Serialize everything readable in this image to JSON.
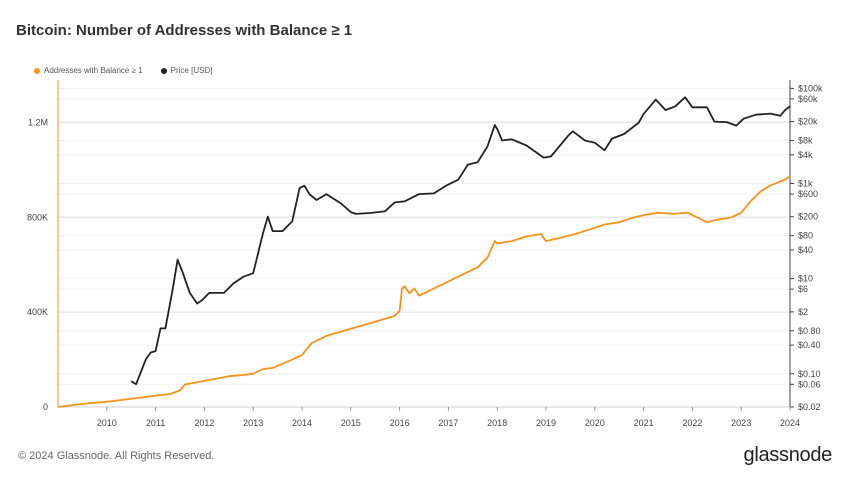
{
  "chart_data": {
    "type": "line",
    "title": "Bitcoin: Number of Addresses with Balance ≥ 1",
    "x_ticks": [
      "2010",
      "2011",
      "2012",
      "2013",
      "2014",
      "2015",
      "2016",
      "2017",
      "2018",
      "2019",
      "2020",
      "2021",
      "2022",
      "2023",
      "2024"
    ],
    "x_range": [
      2009.0,
      2024.0
    ],
    "left_axis": {
      "ticks": [
        {
          "v": 0,
          "label": "0"
        },
        {
          "v": 400000,
          "label": "400K"
        },
        {
          "v": 800000,
          "label": "800K"
        },
        {
          "v": 1200000,
          "label": "1.2M"
        }
      ],
      "ylim": [
        0,
        1380000
      ]
    },
    "right_axis": {
      "scale": "log",
      "ticks": [
        {
          "v": 100000,
          "label": "$100k"
        },
        {
          "v": 60000,
          "label": "$60k"
        },
        {
          "v": 20000,
          "label": "$20k"
        },
        {
          "v": 8000,
          "label": "$8k"
        },
        {
          "v": 4000,
          "label": "$4k"
        },
        {
          "v": 1000,
          "label": "$1k"
        },
        {
          "v": 600,
          "label": "$600"
        },
        {
          "v": 200,
          "label": "$200"
        },
        {
          "v": 80,
          "label": "$80"
        },
        {
          "v": 40,
          "label": "$40"
        },
        {
          "v": 10,
          "label": "$10"
        },
        {
          "v": 6,
          "label": "$6"
        },
        {
          "v": 2,
          "label": "$2"
        },
        {
          "v": 0.8,
          "label": "$0.80"
        },
        {
          "v": 0.4,
          "label": "$0.40"
        },
        {
          "v": 0.1,
          "label": "$0.10"
        },
        {
          "v": 0.06,
          "label": "$0.06"
        },
        {
          "v": 0.02,
          "label": "$0.02"
        }
      ],
      "ylim": [
        0.02,
        150000
      ]
    },
    "series": [
      {
        "name": "Addresses with Balance ≥ 1",
        "color": "#f7931a",
        "axis": "left",
        "points": [
          [
            2009.0,
            0
          ],
          [
            2009.3,
            8000
          ],
          [
            2009.6,
            15000
          ],
          [
            2010.0,
            22000
          ],
          [
            2010.4,
            32000
          ],
          [
            2010.8,
            42000
          ],
          [
            2011.0,
            48000
          ],
          [
            2011.3,
            55000
          ],
          [
            2011.5,
            70000
          ],
          [
            2011.6,
            95000
          ],
          [
            2012.0,
            110000
          ],
          [
            2012.5,
            130000
          ],
          [
            2012.8,
            135000
          ],
          [
            2013.0,
            140000
          ],
          [
            2013.2,
            160000
          ],
          [
            2013.4,
            165000
          ],
          [
            2013.8,
            200000
          ],
          [
            2014.0,
            220000
          ],
          [
            2014.2,
            270000
          ],
          [
            2014.5,
            300000
          ],
          [
            2015.0,
            330000
          ],
          [
            2015.5,
            360000
          ],
          [
            2015.9,
            385000
          ],
          [
            2016.0,
            405000
          ],
          [
            2016.05,
            500000
          ],
          [
            2016.1,
            510000
          ],
          [
            2016.2,
            480000
          ],
          [
            2016.3,
            500000
          ],
          [
            2016.4,
            470000
          ],
          [
            2016.6,
            490000
          ],
          [
            2017.0,
            530000
          ],
          [
            2017.3,
            560000
          ],
          [
            2017.6,
            590000
          ],
          [
            2017.8,
            630000
          ],
          [
            2017.95,
            700000
          ],
          [
            2018.0,
            690000
          ],
          [
            2018.3,
            700000
          ],
          [
            2018.6,
            720000
          ],
          [
            2018.9,
            730000
          ],
          [
            2019.0,
            700000
          ],
          [
            2019.3,
            715000
          ],
          [
            2019.6,
            730000
          ],
          [
            2019.9,
            750000
          ],
          [
            2020.2,
            770000
          ],
          [
            2020.5,
            780000
          ],
          [
            2020.8,
            800000
          ],
          [
            2021.0,
            810000
          ],
          [
            2021.3,
            820000
          ],
          [
            2021.6,
            815000
          ],
          [
            2021.9,
            820000
          ],
          [
            2022.3,
            780000
          ],
          [
            2022.5,
            790000
          ],
          [
            2022.8,
            800000
          ],
          [
            2023.0,
            820000
          ],
          [
            2023.2,
            870000
          ],
          [
            2023.4,
            910000
          ],
          [
            2023.6,
            935000
          ],
          [
            2023.9,
            960000
          ],
          [
            2024.0,
            975000
          ]
        ]
      },
      {
        "name": "Price [USD]",
        "color": "#222222",
        "axis": "right",
        "points": [
          [
            2010.5,
            0.07
          ],
          [
            2010.6,
            0.06
          ],
          [
            2010.8,
            0.2
          ],
          [
            2010.9,
            0.28
          ],
          [
            2011.0,
            0.3
          ],
          [
            2011.1,
            0.9
          ],
          [
            2011.2,
            0.9
          ],
          [
            2011.35,
            6
          ],
          [
            2011.45,
            25
          ],
          [
            2011.55,
            14
          ],
          [
            2011.7,
            5
          ],
          [
            2011.85,
            3
          ],
          [
            2011.95,
            3.5
          ],
          [
            2012.1,
            5
          ],
          [
            2012.4,
            5
          ],
          [
            2012.6,
            8
          ],
          [
            2012.8,
            11
          ],
          [
            2013.0,
            13
          ],
          [
            2013.2,
            90
          ],
          [
            2013.3,
            200
          ],
          [
            2013.4,
            100
          ],
          [
            2013.6,
            100
          ],
          [
            2013.8,
            160
          ],
          [
            2013.95,
            800
          ],
          [
            2014.05,
            900
          ],
          [
            2014.15,
            600
          ],
          [
            2014.3,
            450
          ],
          [
            2014.5,
            600
          ],
          [
            2014.8,
            380
          ],
          [
            2015.0,
            250
          ],
          [
            2015.1,
            230
          ],
          [
            2015.4,
            240
          ],
          [
            2015.7,
            260
          ],
          [
            2015.9,
            400
          ],
          [
            2016.1,
            420
          ],
          [
            2016.4,
            600
          ],
          [
            2016.7,
            620
          ],
          [
            2016.95,
            900
          ],
          [
            2017.2,
            1200
          ],
          [
            2017.4,
            2500
          ],
          [
            2017.6,
            2800
          ],
          [
            2017.8,
            6000
          ],
          [
            2017.95,
            17000
          ],
          [
            2018.0,
            14000
          ],
          [
            2018.1,
            8000
          ],
          [
            2018.3,
            8500
          ],
          [
            2018.6,
            6300
          ],
          [
            2018.95,
            3500
          ],
          [
            2019.1,
            3700
          ],
          [
            2019.45,
            10000
          ],
          [
            2019.55,
            12500
          ],
          [
            2019.8,
            8000
          ],
          [
            2020.0,
            7200
          ],
          [
            2020.2,
            5000
          ],
          [
            2020.35,
            8800
          ],
          [
            2020.6,
            11000
          ],
          [
            2020.9,
            19000
          ],
          [
            2021.0,
            29000
          ],
          [
            2021.25,
            58000
          ],
          [
            2021.45,
            35000
          ],
          [
            2021.65,
            42000
          ],
          [
            2021.85,
            65000
          ],
          [
            2022.0,
            40000
          ],
          [
            2022.3,
            40000
          ],
          [
            2022.45,
            20000
          ],
          [
            2022.7,
            19500
          ],
          [
            2022.9,
            16500
          ],
          [
            2023.05,
            23000
          ],
          [
            2023.3,
            28000
          ],
          [
            2023.6,
            29500
          ],
          [
            2023.8,
            26500
          ],
          [
            2023.9,
            35000
          ],
          [
            2024.0,
            42000
          ]
        ]
      }
    ]
  },
  "footer": {
    "copyright": "© 2024 Glassnode. All Rights Reserved.",
    "brand": "glassnode"
  }
}
